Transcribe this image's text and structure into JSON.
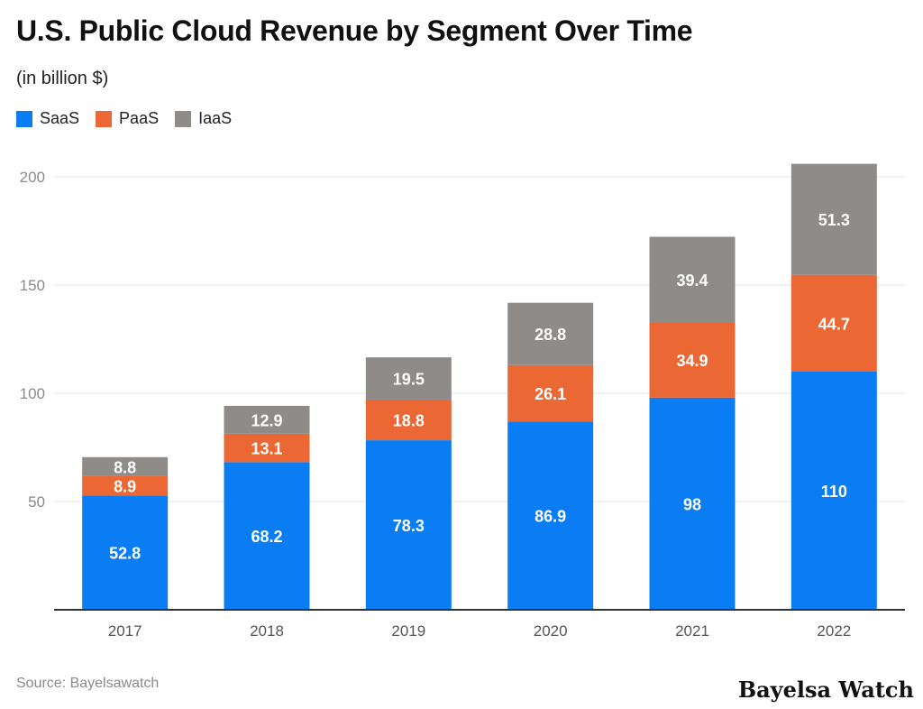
{
  "header": {
    "title": "U.S. Public Cloud Revenue by Segment Over Time",
    "subtitle": "(in billion $)"
  },
  "footer": {
    "source": "Source: Bayelsawatch",
    "brand": "Bayelsa Watch"
  },
  "colors": {
    "saas": "#0a7df5",
    "paas": "#eb6834",
    "iaas": "#8f8b89",
    "axis": "#333333",
    "grid": "#e3e3e3",
    "tick_label": "#8a8a8a"
  },
  "chart_data": {
    "type": "bar",
    "stacked": true,
    "title": "U.S. Public Cloud Revenue by Segment Over Time",
    "subtitle": "(in billion $)",
    "categories": [
      "2017",
      "2018",
      "2019",
      "2020",
      "2021",
      "2022"
    ],
    "series": [
      {
        "name": "SaaS",
        "color": "#0a7df5",
        "values": [
          52.8,
          68.2,
          78.3,
          86.9,
          98,
          110
        ]
      },
      {
        "name": "PaaS",
        "color": "#eb6834",
        "values": [
          8.9,
          13.1,
          18.8,
          26.1,
          34.9,
          44.7
        ]
      },
      {
        "name": "IaaS",
        "color": "#8f8b89",
        "values": [
          8.8,
          12.9,
          19.5,
          28.8,
          39.4,
          51.3
        ]
      }
    ],
    "labels": [
      [
        "52.8",
        "68.2",
        "78.3",
        "86.9",
        "98",
        "110"
      ],
      [
        "8.9",
        "13.1",
        "18.8",
        "26.1",
        "34.9",
        "44.7"
      ],
      [
        "8.8",
        "12.9",
        "19.5",
        "28.8",
        "39.4",
        "51.3"
      ]
    ],
    "y_ticks": [
      50,
      100,
      150,
      200
    ],
    "y_tick_labels": [
      "50",
      "100",
      "150",
      "200"
    ],
    "ylim": [
      0,
      210
    ],
    "xlabel": "",
    "ylabel": "",
    "grid": true,
    "legend": "top-left"
  }
}
